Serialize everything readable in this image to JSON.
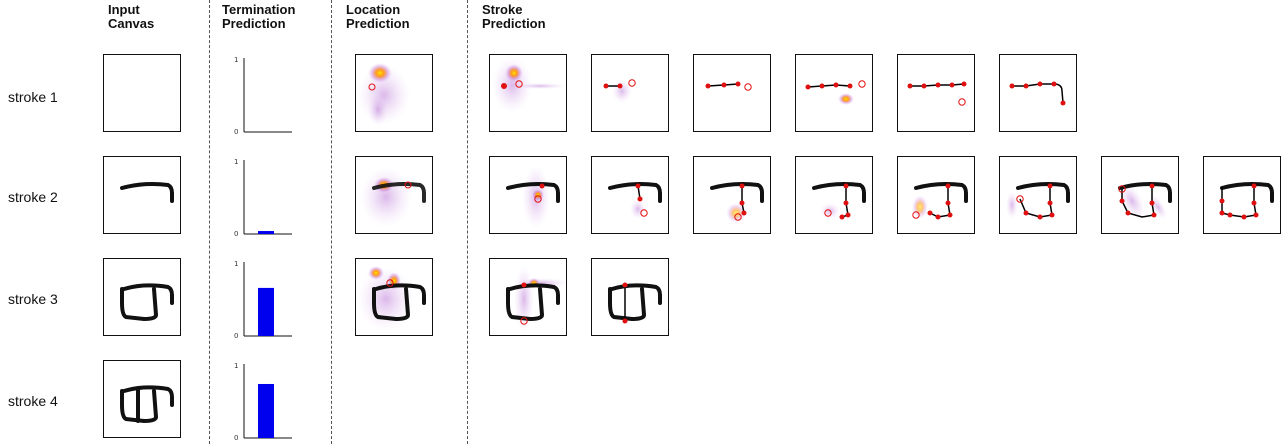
{
  "headers": {
    "input": "Input\nCanvas",
    "termination": "Termination\nPrediction",
    "location": "Location\nPrediction",
    "stroke": "Stroke\nPrediction"
  },
  "rows": [
    {
      "label": "stroke 1",
      "termination": 0.0
    },
    {
      "label": "stroke 2",
      "termination": 0.04
    },
    {
      "label": "stroke 3",
      "termination": 0.65
    },
    {
      "label": "stroke 4",
      "termination": 0.73
    }
  ],
  "termination_axis": {
    "ymin": "0",
    "ymax": "1"
  },
  "colors": {
    "bar": "#0000ee",
    "point": "#e01010",
    "stroke": "#000000",
    "heat_hot": "#ffd400",
    "heat_mid": "#ff7a00",
    "heat_low": "#c080e0"
  },
  "chart_data": {
    "type": "bar",
    "categories": [
      "stroke 1",
      "stroke 2",
      "stroke 3",
      "stroke 4"
    ],
    "values": [
      0.0,
      0.04,
      0.65,
      0.73
    ],
    "ylim": [
      0,
      1
    ],
    "yticks": [
      "0",
      "1"
    ]
  }
}
